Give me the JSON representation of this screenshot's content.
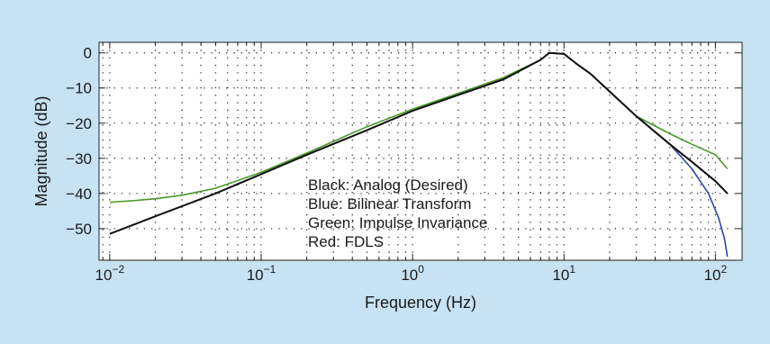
{
  "chart_data": {
    "type": "line",
    "xlabel": "Frequency (Hz)",
    "ylabel": "Magnitude (dB)",
    "x_scale": "log",
    "xlim": [
      0.0085,
      150
    ],
    "ylim": [
      -59,
      3
    ],
    "x_ticks": [
      0.01,
      0.1,
      1,
      10,
      100
    ],
    "x_tick_labels": [
      {
        "base": "10",
        "exp": "−2"
      },
      {
        "base": "10",
        "exp": "−1"
      },
      {
        "base": "10",
        "exp": "0"
      },
      {
        "base": "10",
        "exp": "1"
      },
      {
        "base": "10",
        "exp": "2"
      }
    ],
    "y_ticks": [
      0,
      -10,
      -20,
      -30,
      -40,
      -50
    ],
    "y_tick_labels": [
      "0",
      "−10",
      "−20",
      "−30",
      "−40",
      "−50"
    ],
    "grid": "dotted",
    "legend_lines": [
      "Black: Analog (Desired)",
      "Blue: Bilinear Transform",
      "Green: Impulse Invariance",
      "Red: FDLS"
    ],
    "series": [
      {
        "color": "#ee3311",
        "x": [
          8,
          10,
          12,
          15,
          20,
          30,
          50,
          70,
          100,
          120
        ],
        "y": [
          0,
          -0.3,
          -3,
          -6,
          -11,
          -18,
          -26,
          -31,
          -36.5,
          -40
        ]
      },
      {
        "color": "#4a9a2a",
        "x": [
          0.01,
          0.015,
          0.02,
          0.03,
          0.05,
          0.1,
          0.2,
          0.5,
          1,
          2,
          4,
          7,
          8,
          10,
          12,
          15,
          20,
          30,
          50,
          70,
          100,
          120
        ],
        "y": [
          -42.5,
          -42,
          -41.5,
          -40.5,
          -38.5,
          -34,
          -28.5,
          -21,
          -16,
          -11.5,
          -7,
          -2,
          0,
          -0.3,
          -3,
          -6,
          -11,
          -18,
          -23,
          -26,
          -29,
          -33
        ]
      },
      {
        "color": "#3344aa",
        "x": [
          0.01,
          0.02,
          0.05,
          0.1,
          0.2,
          0.5,
          1,
          2,
          4,
          7,
          8,
          10,
          12,
          15,
          20,
          30,
          50,
          70,
          90,
          105,
          115,
          120
        ],
        "y": [
          -51.5,
          -46.5,
          -40,
          -34.5,
          -29,
          -22,
          -16.5,
          -12,
          -7.5,
          -2,
          0,
          -0.3,
          -3,
          -6,
          -11,
          -18,
          -26,
          -33,
          -40,
          -47,
          -53,
          -58
        ]
      },
      {
        "color": "#111111",
        "x": [
          0.01,
          0.02,
          0.05,
          0.1,
          0.2,
          0.5,
          1,
          2,
          4,
          7,
          8,
          10,
          12,
          15,
          20,
          30,
          50,
          70,
          100,
          120
        ],
        "y": [
          -51.5,
          -46.5,
          -40,
          -34.5,
          -29,
          -22,
          -16.5,
          -12,
          -7.5,
          -2,
          0,
          -0.3,
          -3,
          -6,
          -11,
          -18,
          -26,
          -31,
          -36.5,
          -40
        ]
      }
    ]
  }
}
